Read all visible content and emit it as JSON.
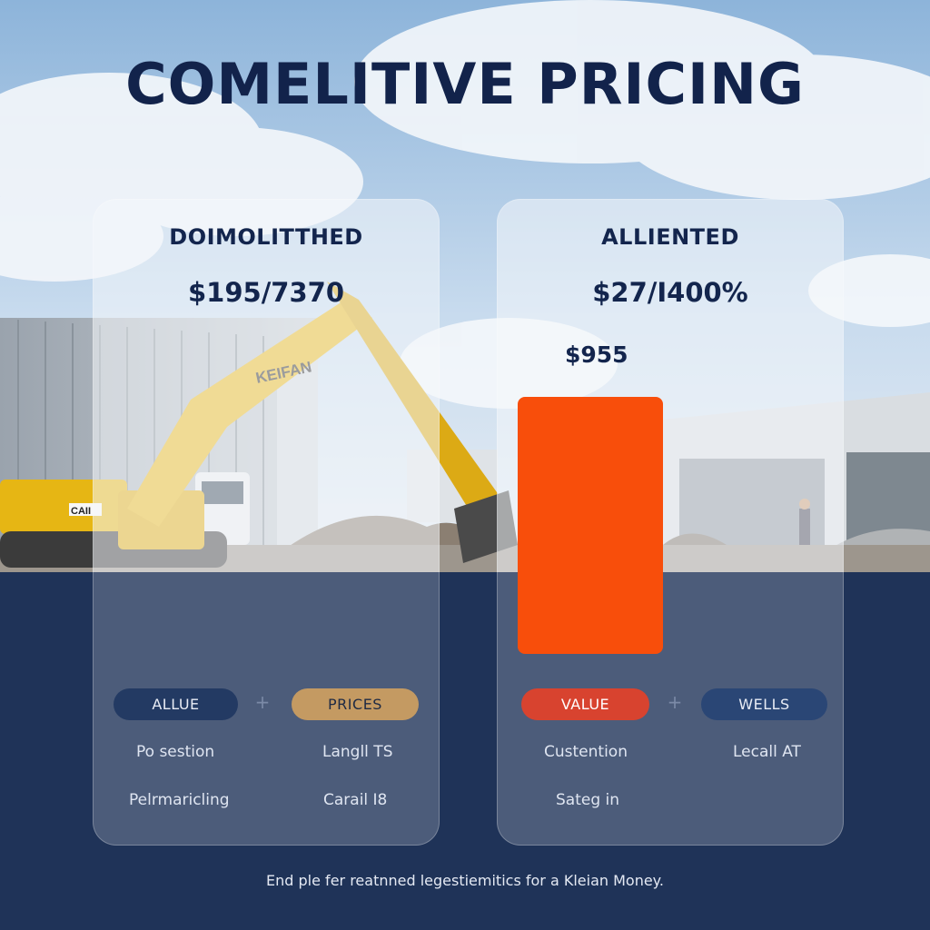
{
  "headline": "COMELITIVE PRICING",
  "cards": [
    {
      "title": "DOIMOLITTHED",
      "price": "$195/7370",
      "pills": [
        {
          "label": "ALLUE"
        },
        {
          "label": "PRICES"
        }
      ],
      "plus": "+",
      "rows": [
        [
          "Po sestion",
          "Langll TS"
        ],
        [
          "Pelrmaricling",
          "Carail I8"
        ]
      ]
    },
    {
      "title": "ALLIENTED",
      "price": "$27/I400%",
      "subprice": "$955",
      "bar_color": "#f84e0b",
      "pills": [
        {
          "label": "VALUE"
        },
        {
          "label": "WELLS"
        }
      ],
      "plus": "+",
      "rows": [
        [
          "Custention",
          "Lecall AT"
        ],
        [
          "Sateg in",
          ""
        ]
      ]
    }
  ],
  "scene": {
    "excavator_brand": "KEIFAN",
    "cab_logo": "CAII"
  },
  "footer": "End ple fer reatnned legestiemitics for a Kleian Money.",
  "colors": {
    "navy": "#1f3358",
    "headline": "#12234b",
    "accent_orange": "#f84e0b",
    "pill_gold": "#c49a62",
    "pill_red": "#d8432f"
  }
}
